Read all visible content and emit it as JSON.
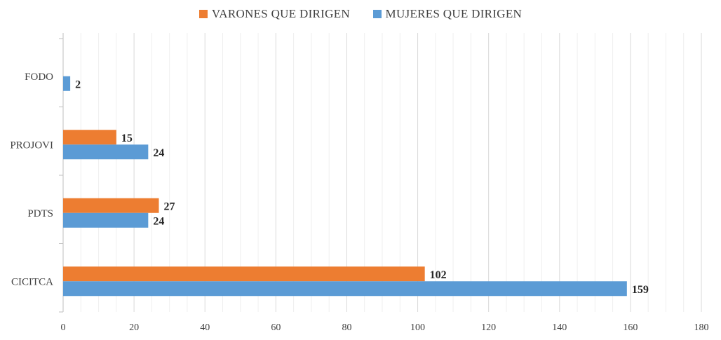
{
  "chart_data": {
    "type": "bar",
    "orientation": "horizontal",
    "categories": [
      "FODO",
      "PROJOVI",
      "PDTS",
      "CICITCA"
    ],
    "series": [
      {
        "name": "VARONES QUE DIRIGEN",
        "color": "#ED7D31",
        "values": [
          null,
          15,
          27,
          102
        ]
      },
      {
        "name": "MUJERES QUE DIRIGEN",
        "color": "#5B9BD5",
        "values": [
          2,
          24,
          24,
          159
        ]
      }
    ],
    "xlim": [
      0,
      180
    ],
    "x_ticks": [
      0,
      20,
      40,
      60,
      80,
      100,
      120,
      140,
      160,
      180
    ],
    "grid": true,
    "legend_position": "top",
    "data_labels": true
  }
}
